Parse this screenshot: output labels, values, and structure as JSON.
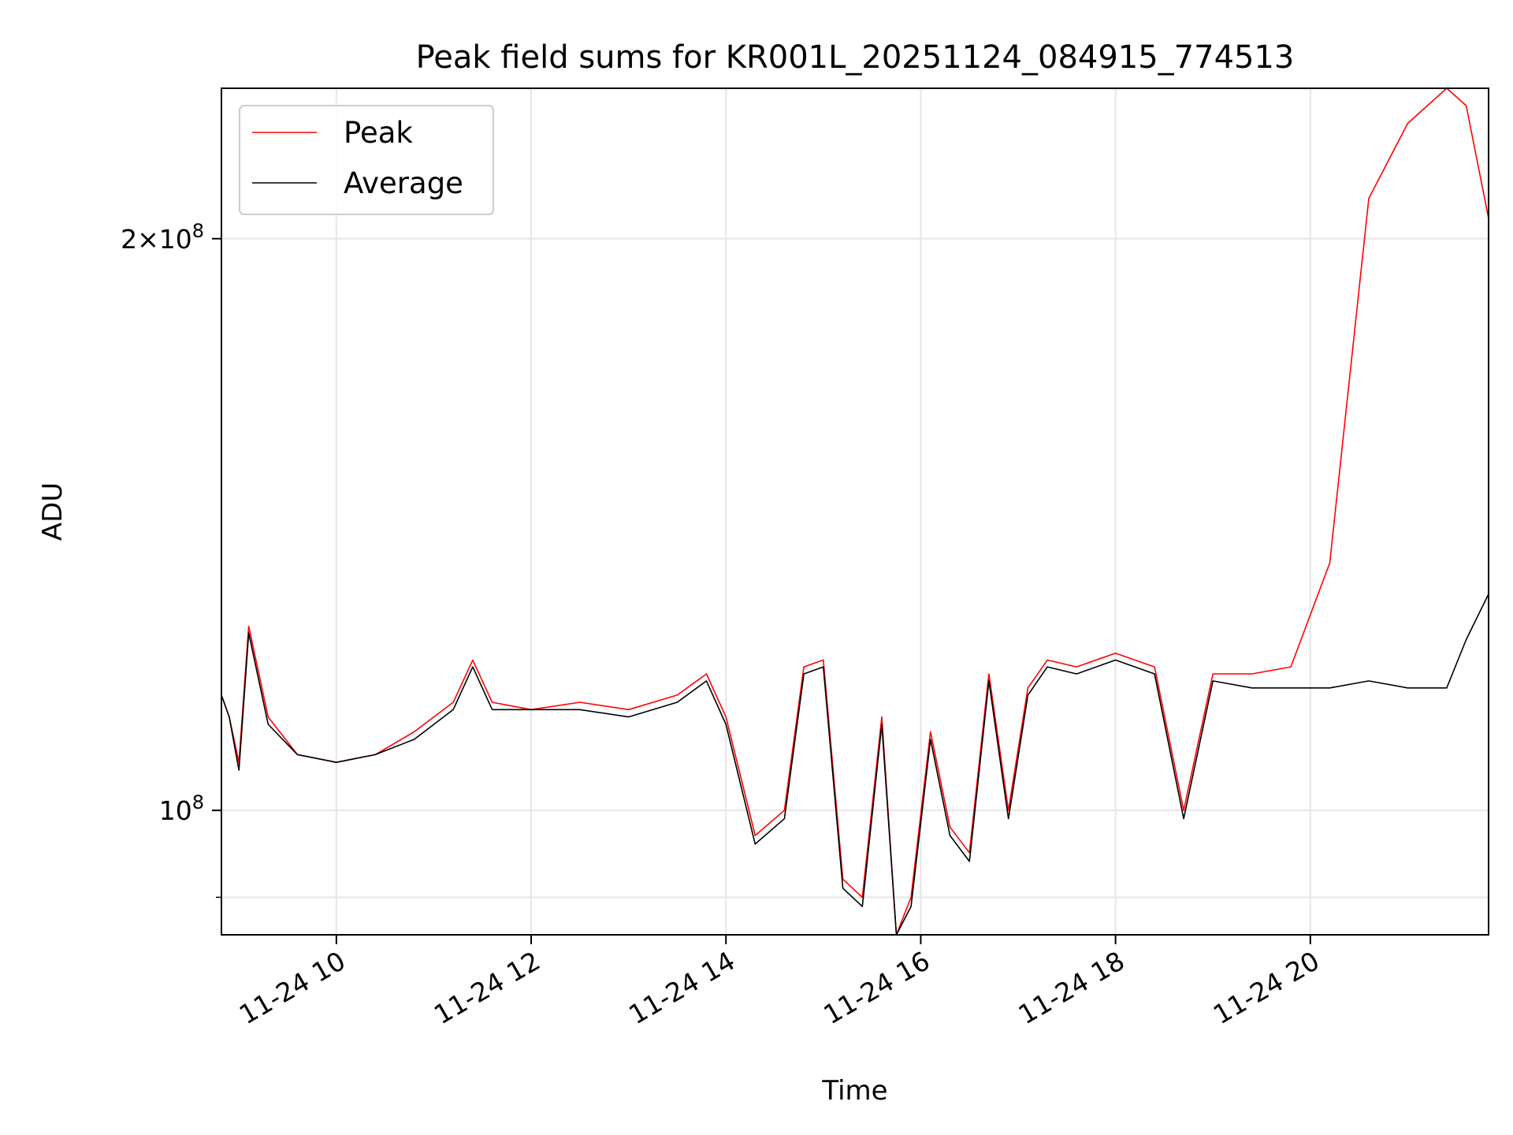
{
  "chart_data": {
    "type": "line",
    "title": "Peak field sums for KR001L_20251124_084915_774513",
    "xlabel": "Time",
    "ylabel": "ADU",
    "yscale": "log",
    "xlim_hours": [
      8.82,
      21.83
    ],
    "ylim": [
      86000000,
      240000000
    ],
    "x_ticks": [
      {
        "hour": 10,
        "label": "11-24 10"
      },
      {
        "hour": 12,
        "label": "11-24 12"
      },
      {
        "hour": 14,
        "label": "11-24 14"
      },
      {
        "hour": 16,
        "label": "11-24 16"
      },
      {
        "hour": 18,
        "label": "11-24 18"
      },
      {
        "hour": 20,
        "label": "11-24 20"
      }
    ],
    "y_major_ticks": [
      {
        "value": 100000000,
        "base": "10",
        "exp": "8"
      },
      {
        "value": 200000000,
        "mant": "2",
        "times": "×",
        "base": "10",
        "exp": "8"
      }
    ],
    "y_minor_ticks": [
      90000000
    ],
    "grid": true,
    "legend_position": "top-left",
    "series": [
      {
        "name": "Peak",
        "color": "#ff0000",
        "x_hours": [
          8.82,
          8.9,
          9.0,
          9.1,
          9.3,
          9.6,
          10.0,
          10.4,
          10.8,
          11.2,
          11.4,
          11.6,
          12.0,
          12.5,
          13.0,
          13.5,
          13.8,
          14.0,
          14.3,
          14.6,
          14.8,
          15.0,
          15.2,
          15.4,
          15.6,
          15.75,
          15.9,
          16.1,
          16.3,
          16.5,
          16.7,
          16.9,
          17.1,
          17.3,
          17.6,
          18.0,
          18.4,
          18.7,
          19.0,
          19.4,
          19.8,
          20.2,
          20.6,
          21.0,
          21.4,
          21.6,
          21.83
        ],
        "values": [
          115000000,
          112000000,
          106000000,
          125000000,
          112000000,
          107000000,
          106000000,
          107000000,
          110000000,
          114000000,
          120000000,
          114000000,
          113000000,
          114000000,
          113000000,
          115000000,
          118000000,
          112000000,
          97000000,
          100000000,
          119000000,
          120000000,
          92000000,
          90000000,
          112000000,
          86000000,
          90000000,
          110000000,
          98000000,
          95000000,
          118000000,
          100000000,
          116000000,
          120000000,
          119000000,
          121000000,
          119000000,
          100000000,
          118000000,
          118000000,
          119000000,
          135000000,
          210000000,
          230000000,
          240000000,
          235000000,
          205000000
        ]
      },
      {
        "name": "Average",
        "color": "#000000",
        "x_hours": [
          8.82,
          8.9,
          9.0,
          9.1,
          9.3,
          9.6,
          10.0,
          10.4,
          10.8,
          11.2,
          11.4,
          11.6,
          12.0,
          12.5,
          13.0,
          13.5,
          13.8,
          14.0,
          14.3,
          14.6,
          14.8,
          15.0,
          15.2,
          15.4,
          15.6,
          15.75,
          15.9,
          16.1,
          16.3,
          16.5,
          16.7,
          16.9,
          17.1,
          17.3,
          17.6,
          18.0,
          18.4,
          18.7,
          19.0,
          19.4,
          19.8,
          20.2,
          20.6,
          21.0,
          21.4,
          21.6,
          21.83
        ],
        "values": [
          115000000,
          112000000,
          105000000,
          124000000,
          111000000,
          107000000,
          106000000,
          107000000,
          109000000,
          113000000,
          119000000,
          113000000,
          113000000,
          113000000,
          112000000,
          114000000,
          117000000,
          111000000,
          96000000,
          99000000,
          118000000,
          119000000,
          91000000,
          89000000,
          111000000,
          86000000,
          89000000,
          109000000,
          97000000,
          94000000,
          117000000,
          99000000,
          115000000,
          119000000,
          118000000,
          120000000,
          118000000,
          99000000,
          117000000,
          116000000,
          116000000,
          116000000,
          117000000,
          116000000,
          116000000,
          123000000,
          130000000
        ]
      }
    ]
  }
}
